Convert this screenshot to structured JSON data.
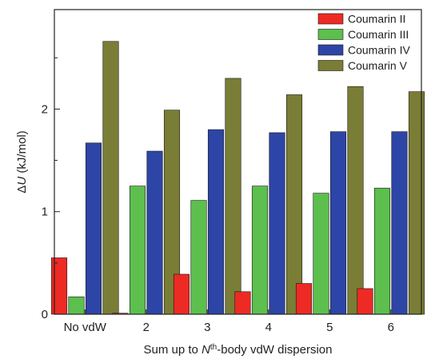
{
  "chart_data": {
    "type": "bar",
    "title": "",
    "xlabel_parts": {
      "pre": "Sum up to ",
      "var": "N",
      "sup": "th",
      "post": "-body vdW dispersion"
    },
    "ylabel_parts": {
      "delta": "Δ",
      "var": "U",
      "post": " (kJ/mol)"
    },
    "categories": [
      "No vdW",
      "2",
      "3",
      "4",
      "5",
      "6"
    ],
    "ylim": [
      0,
      2.97
    ],
    "yticks": [
      "0",
      "1",
      "2"
    ],
    "ytick_values": [
      0,
      1,
      2
    ],
    "grid": false,
    "legend_position": "top-right",
    "series": [
      {
        "name": "Coumarin II",
        "color": "#ee2a24",
        "values": [
          0.55,
          0.01,
          0.39,
          0.22,
          0.3,
          0.25
        ]
      },
      {
        "name": "Coumarin III",
        "color": "#5cbf4e",
        "values": [
          0.17,
          1.25,
          1.11,
          1.25,
          1.18,
          1.23
        ]
      },
      {
        "name": "Coumarin IV",
        "color": "#2d45a6",
        "values": [
          1.67,
          1.59,
          1.8,
          1.77,
          1.78,
          1.78
        ]
      },
      {
        "name": "Coumarin V",
        "color": "#7a7d35",
        "values": [
          2.66,
          1.99,
          2.3,
          2.14,
          2.22,
          2.17
        ]
      }
    ]
  }
}
